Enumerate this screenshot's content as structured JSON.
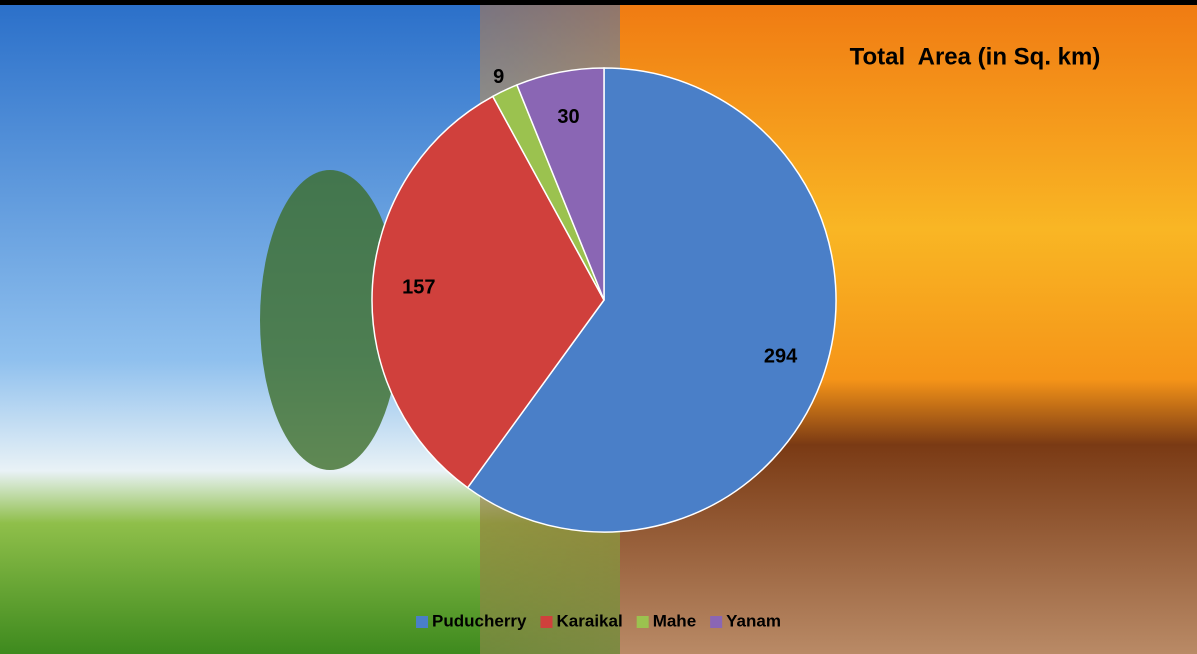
{
  "chart_data": {
    "type": "pie",
    "title": "Total  Area (in Sq. km)",
    "categories": [
      "Puducherry",
      "Karaikal",
      "Mahe",
      "Yanam"
    ],
    "values": [
      294,
      157,
      9,
      30
    ],
    "colors": [
      "#4a7fc8",
      "#d0403c",
      "#9bc24f",
      "#8a66b4"
    ],
    "legend": "bottom"
  }
}
